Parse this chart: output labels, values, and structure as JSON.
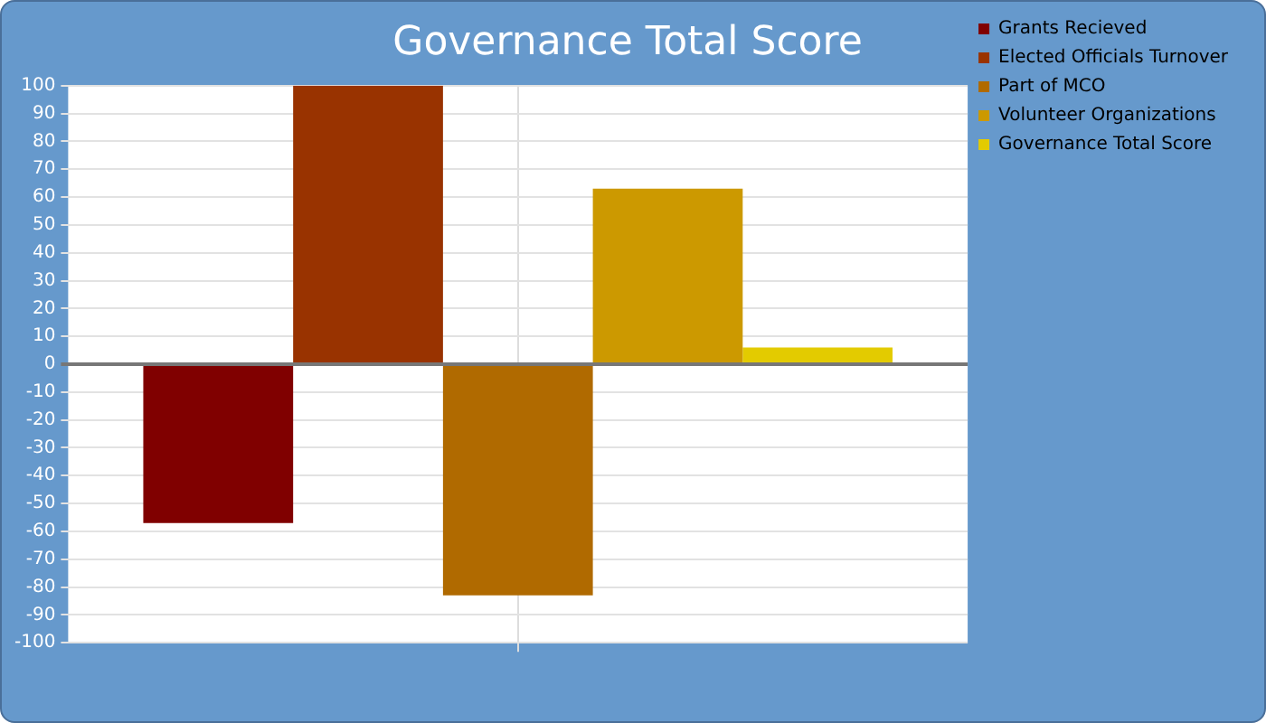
{
  "chart_data": {
    "type": "bar",
    "title": "Governance Total Score",
    "categories": [
      null
    ],
    "series": [
      {
        "name": "Grants Recieved",
        "color": "#800000",
        "values": [
          -57
        ]
      },
      {
        "name": "Elected Officials Turnover",
        "color": "#993300",
        "values": [
          100
        ]
      },
      {
        "name": "Part of MCO",
        "color": "#b06a00",
        "values": [
          -83
        ]
      },
      {
        "name": "Volunteer Organizations",
        "color": "#cc9900",
        "values": [
          63
        ]
      },
      {
        "name": "Governance Total Score",
        "color": "#e3cb00",
        "values": [
          6
        ]
      }
    ],
    "ylim": [
      -100,
      100
    ],
    "yticks": [
      -100,
      -90,
      -80,
      -70,
      -60,
      -50,
      -40,
      -30,
      -20,
      -10,
      0,
      10,
      20,
      30,
      40,
      50,
      60,
      70,
      80,
      90,
      100
    ],
    "grid": true,
    "legend": "top right"
  }
}
